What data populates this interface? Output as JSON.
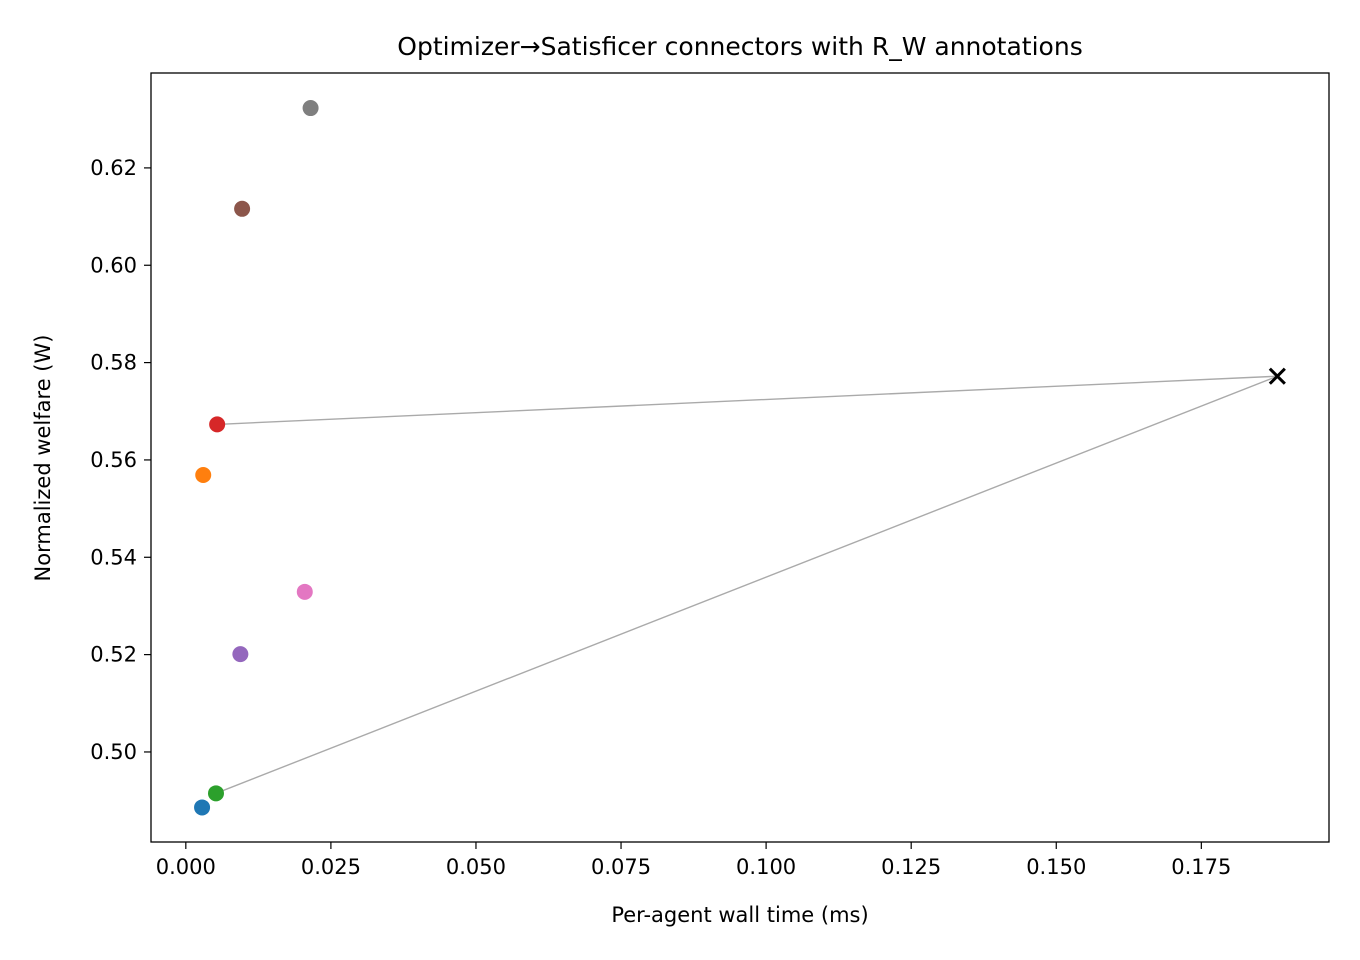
{
  "chart_data": {
    "type": "scatter",
    "title": "Optimizer→Satisficer connectors with R_W annotations",
    "xlabel": "Per-agent wall time (ms)",
    "ylabel": "Normalized welfare (W)",
    "xlim": [
      -0.006,
      0.197
    ],
    "ylim": [
      0.4815,
      0.6395
    ],
    "x_ticks": [
      0.0,
      0.025,
      0.05,
      0.075,
      0.1,
      0.125,
      0.15,
      0.175
    ],
    "x_tick_labels": [
      "0.000",
      "0.025",
      "0.050",
      "0.075",
      "0.100",
      "0.125",
      "0.150",
      "0.175"
    ],
    "y_ticks": [
      0.5,
      0.52,
      0.54,
      0.56,
      0.58,
      0.6,
      0.62
    ],
    "y_tick_labels": [
      "0.50",
      "0.52",
      "0.54",
      "0.56",
      "0.58",
      "0.60",
      "0.62"
    ],
    "grid": false,
    "points": [
      {
        "x": 0.0028,
        "y": 0.4886,
        "color": "#1f77b4"
      },
      {
        "x": 0.003,
        "y": 0.5569,
        "color": "#ff7f0e"
      },
      {
        "x": 0.0052,
        "y": 0.4915,
        "color": "#2ca02c"
      },
      {
        "x": 0.0054,
        "y": 0.5673,
        "color": "#d62728"
      },
      {
        "x": 0.0094,
        "y": 0.5201,
        "color": "#9467bd"
      },
      {
        "x": 0.0097,
        "y": 0.6116,
        "color": "#8c564b"
      },
      {
        "x": 0.0205,
        "y": 0.5329,
        "color": "#e377c2"
      },
      {
        "x": 0.0215,
        "y": 0.6323,
        "color": "#7f7f7f"
      }
    ],
    "marker_points": [
      {
        "x": 0.1881,
        "y": 0.5772,
        "marker": "x",
        "color": "#000000"
      }
    ],
    "connectors": [
      {
        "from": [
          0.1881,
          0.5772
        ],
        "to": [
          0.0054,
          0.5673
        ],
        "color": "#aaaaaa"
      },
      {
        "from": [
          0.1881,
          0.5772
        ],
        "to": [
          0.0052,
          0.4915
        ],
        "color": "#aaaaaa"
      }
    ]
  }
}
